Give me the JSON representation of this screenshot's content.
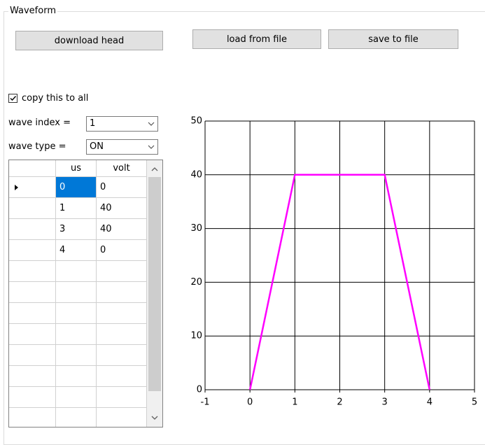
{
  "group": {
    "title": "Waveform"
  },
  "buttons": {
    "download": "download head",
    "load": "load from file",
    "save": "save to file"
  },
  "checkbox": {
    "label": "copy this to all",
    "checked": true
  },
  "wave_index": {
    "label": "wave index =",
    "value": "1"
  },
  "wave_type": {
    "label": "wave type =",
    "value": "ON"
  },
  "table": {
    "columns": [
      "us",
      "volt"
    ],
    "rows": [
      [
        "0",
        "0"
      ],
      [
        "1",
        "40"
      ],
      [
        "3",
        "40"
      ],
      [
        "4",
        "0"
      ]
    ]
  },
  "chart_data": {
    "type": "line",
    "x": [
      0,
      1,
      3,
      4
    ],
    "series": [
      {
        "color": "#ff00ff",
        "values": [
          0,
          40,
          40,
          0
        ]
      }
    ],
    "xlim": [
      -1,
      5
    ],
    "xticks": [
      -1,
      0,
      1,
      2,
      3,
      4,
      5
    ],
    "ylim": [
      0,
      50
    ],
    "yticks": [
      0,
      10,
      20,
      30,
      40,
      50
    ],
    "grid": true
  }
}
